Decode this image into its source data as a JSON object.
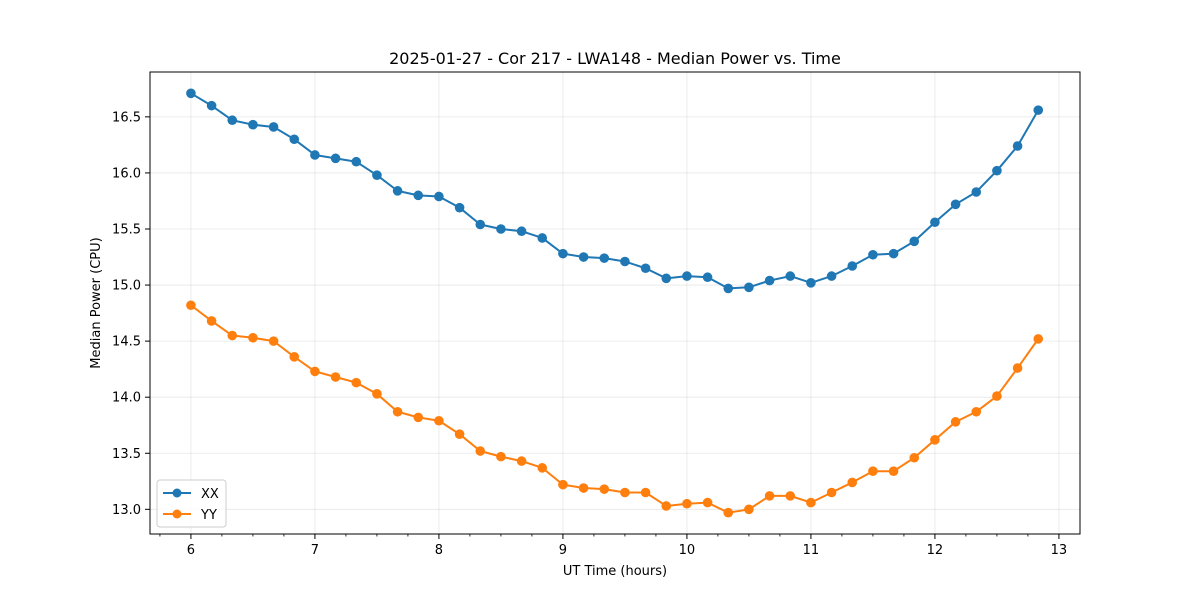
{
  "chart_data": {
    "type": "line",
    "title": "2025-01-27 - Cor 217 - LWA148 - Median Power vs. Time",
    "xlabel": "UT Time (hours)",
    "ylabel": "Median Power (CPU)",
    "xlim": [
      5.67,
      13.17
    ],
    "ylim": [
      12.78,
      16.9
    ],
    "xticks": [
      6,
      7,
      8,
      9,
      10,
      11,
      12,
      13
    ],
    "xtick_labels": [
      "6",
      "7",
      "8",
      "9",
      "10",
      "11",
      "12",
      "13"
    ],
    "yticks": [
      13.0,
      13.5,
      14.0,
      14.5,
      15.0,
      15.5,
      16.0,
      16.5
    ],
    "ytick_labels": [
      "13.0",
      "13.5",
      "14.0",
      "14.5",
      "15.0",
      "15.5",
      "16.0",
      "16.5"
    ],
    "grid": true,
    "legend_position": "lower-left",
    "x": [
      6.0,
      6.1667,
      6.3333,
      6.5,
      6.6667,
      6.8333,
      7.0,
      7.1667,
      7.3333,
      7.5,
      7.6667,
      7.8333,
      8.0,
      8.1667,
      8.3333,
      8.5,
      8.6667,
      8.8333,
      9.0,
      9.1667,
      9.3333,
      9.5,
      9.6667,
      9.8333,
      10.0,
      10.1667,
      10.3333,
      10.5,
      10.6667,
      10.8333,
      11.0,
      11.1667,
      11.3333,
      11.5,
      11.6667,
      11.8333,
      12.0,
      12.1667,
      12.3333,
      12.5,
      12.6667,
      12.8333
    ],
    "series": [
      {
        "name": "XX",
        "color": "#1f77b4",
        "values": [
          16.71,
          16.6,
          16.47,
          16.43,
          16.41,
          16.3,
          16.16,
          16.13,
          16.1,
          15.98,
          15.84,
          15.8,
          15.79,
          15.69,
          15.54,
          15.5,
          15.48,
          15.42,
          15.28,
          15.25,
          15.24,
          15.21,
          15.15,
          15.06,
          15.08,
          15.07,
          14.97,
          14.98,
          15.04,
          15.08,
          15.02,
          15.08,
          15.17,
          15.27,
          15.28,
          15.39,
          15.56,
          15.72,
          15.83,
          16.02,
          16.24,
          16.56
        ]
      },
      {
        "name": "YY",
        "color": "#ff7f0e",
        "values": [
          14.82,
          14.68,
          14.55,
          14.53,
          14.5,
          14.36,
          14.23,
          14.18,
          14.13,
          14.03,
          13.87,
          13.82,
          13.79,
          13.67,
          13.52,
          13.47,
          13.43,
          13.37,
          13.22,
          13.19,
          13.18,
          13.15,
          13.15,
          13.03,
          13.05,
          13.06,
          12.97,
          13.0,
          13.12,
          13.12,
          13.06,
          13.15,
          13.24,
          13.34,
          13.34,
          13.46,
          13.62,
          13.78,
          13.87,
          14.01,
          14.26,
          14.52
        ]
      }
    ]
  }
}
